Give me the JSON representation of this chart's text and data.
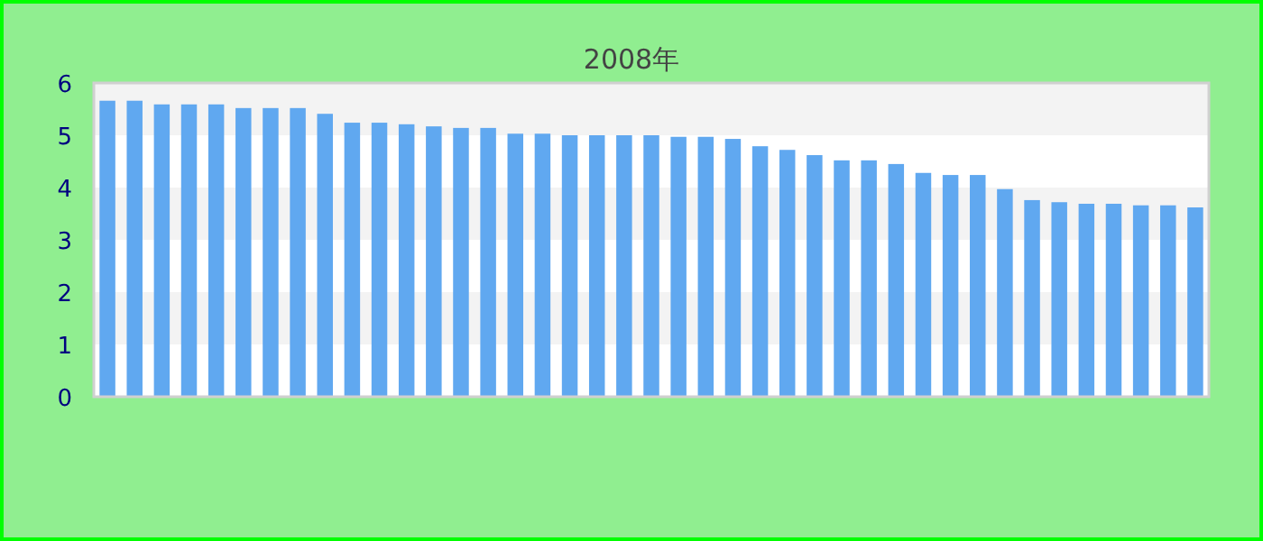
{
  "chart_data": {
    "type": "bar",
    "subtitle": "2008年",
    "categories": [
      null,
      null,
      null,
      null,
      null,
      null,
      null,
      null,
      null,
      null,
      null,
      null,
      null,
      null,
      null,
      null,
      null,
      null,
      null,
      null,
      null,
      null,
      null,
      null,
      null,
      null,
      null,
      null,
      null,
      null,
      null,
      null,
      null,
      null,
      null,
      null,
      null,
      null,
      null,
      null,
      null
    ],
    "values": [
      5.66,
      5.66,
      5.59,
      5.59,
      5.59,
      5.52,
      5.52,
      5.52,
      5.41,
      5.24,
      5.24,
      5.21,
      5.17,
      5.14,
      5.14,
      5.03,
      5.03,
      5.0,
      5.0,
      5.0,
      5.0,
      4.97,
      4.97,
      4.93,
      4.79,
      4.72,
      4.62,
      4.52,
      4.52,
      4.45,
      4.28,
      4.24,
      4.24,
      3.97,
      3.76,
      3.72,
      3.69,
      3.69,
      3.66,
      3.66,
      3.62
    ],
    "color": "#60a8f0",
    "ylim": [
      0,
      6
    ],
    "yticks": [
      0,
      1,
      2,
      3,
      4,
      5,
      6
    ]
  }
}
